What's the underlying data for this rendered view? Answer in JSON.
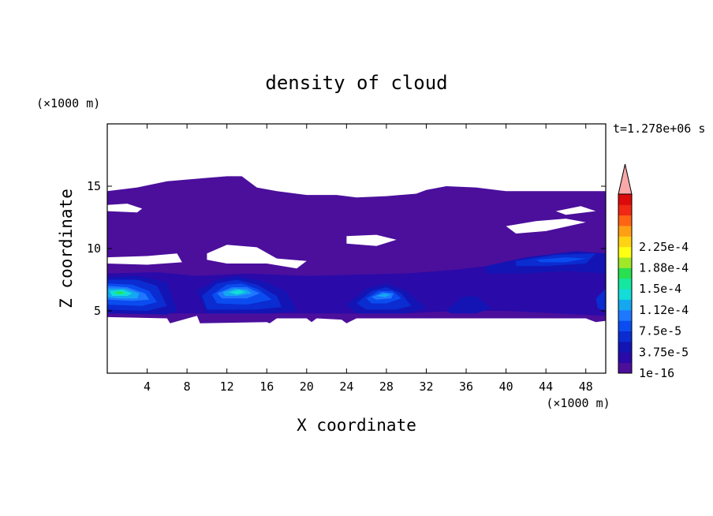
{
  "chart_data": {
    "type": "heatmap",
    "title": "density of cloud",
    "time_label": "t=1.278e+06 s",
    "xlabel": "X coordinate",
    "ylabel": "Z coordinate",
    "x_unit": "(×1000 m)",
    "y_unit": "(×1000 m)",
    "xlim": [
      0,
      50
    ],
    "ylim": [
      0,
      20
    ],
    "x_ticks": [
      {
        "value": 4,
        "label": "4"
      },
      {
        "value": 8,
        "label": "8"
      },
      {
        "value": 12,
        "label": "12"
      },
      {
        "value": 16,
        "label": "16"
      },
      {
        "value": 20,
        "label": "20"
      },
      {
        "value": 24,
        "label": "24"
      },
      {
        "value": 28,
        "label": "28"
      },
      {
        "value": 32,
        "label": "32"
      },
      {
        "value": 36,
        "label": "36"
      },
      {
        "value": 40,
        "label": "40"
      },
      {
        "value": 44,
        "label": "44"
      },
      {
        "value": 48,
        "label": "48"
      }
    ],
    "y_ticks": [
      {
        "value": 5,
        "label": "5"
      },
      {
        "value": 10,
        "label": "10"
      },
      {
        "value": 15,
        "label": "15"
      }
    ],
    "colorbar": {
      "levels": [
        "#4b0f9c",
        "#2a0aa8",
        "#1414b4",
        "#0a2cd0",
        "#0a4cf0",
        "#1e78ff",
        "#14a8f0",
        "#14dcd8",
        "#14e8a0",
        "#28e050",
        "#a0e828",
        "#ffff14",
        "#ffd214",
        "#ffa014",
        "#ff6414",
        "#f02814",
        "#dc0a0a"
      ],
      "extend_color": "#f8a8a8",
      "tick_labels": [
        {
          "level": 0,
          "label": "1e-16"
        },
        {
          "level": 2,
          "label": "3.75e-5"
        },
        {
          "level": 4,
          "label": "7.5e-5"
        },
        {
          "level": 6,
          "label": "1.12e-4"
        },
        {
          "level": 8,
          "label": "1.5e-4"
        },
        {
          "level": 10,
          "label": "1.88e-4"
        },
        {
          "level": 12,
          "label": "2.25e-4"
        }
      ]
    },
    "cloud_layer": {
      "color": "#4b0f9c",
      "top": [
        [
          0,
          14.6
        ],
        [
          3,
          14.9
        ],
        [
          6,
          15.4
        ],
        [
          9,
          15.6
        ],
        [
          12,
          15.8
        ],
        [
          13.5,
          15.8
        ],
        [
          15,
          14.9
        ],
        [
          17,
          14.6
        ],
        [
          20,
          14.3
        ],
        [
          23,
          14.3
        ],
        [
          25,
          14.1
        ],
        [
          28,
          14.2
        ],
        [
          31,
          14.4
        ],
        [
          32,
          14.7
        ],
        [
          34,
          15.0
        ],
        [
          37,
          14.9
        ],
        [
          40,
          14.6
        ],
        [
          45,
          14.6
        ],
        [
          50,
          14.6
        ]
      ],
      "bottom": [
        [
          0,
          4.5
        ],
        [
          6,
          4.4
        ],
        [
          6.3,
          4.0
        ],
        [
          9,
          4.6
        ],
        [
          9.3,
          4.0
        ],
        [
          16,
          4.1
        ],
        [
          16.3,
          4.0
        ],
        [
          17,
          4.4
        ],
        [
          20,
          4.4
        ],
        [
          20.5,
          4.1
        ],
        [
          21,
          4.4
        ],
        [
          23.5,
          4.3
        ],
        [
          24,
          4.0
        ],
        [
          25,
          4.4
        ],
        [
          32,
          4.4
        ],
        [
          40,
          4.4
        ],
        [
          48,
          4.4
        ],
        [
          49,
          4.1
        ],
        [
          50,
          4.2
        ]
      ]
    },
    "gaps": [
      [
        [
          0,
          13.5
        ],
        [
          2,
          13.6
        ],
        [
          3.5,
          13.2
        ],
        [
          3,
          12.9
        ],
        [
          0,
          13.0
        ]
      ],
      [
        [
          0,
          9.3
        ],
        [
          4,
          9.4
        ],
        [
          7,
          9.6
        ],
        [
          7.5,
          8.9
        ],
        [
          4,
          8.7
        ],
        [
          0,
          8.8
        ]
      ],
      [
        [
          10,
          9.6
        ],
        [
          12,
          10.3
        ],
        [
          15,
          10.1
        ],
        [
          17,
          9.2
        ],
        [
          20,
          9.0
        ],
        [
          19,
          8.4
        ],
        [
          16,
          8.8
        ],
        [
          12,
          8.8
        ],
        [
          10,
          9.1
        ]
      ],
      [
        [
          24,
          11.0
        ],
        [
          27,
          11.1
        ],
        [
          29,
          10.7
        ],
        [
          27,
          10.2
        ],
        [
          24,
          10.4
        ]
      ],
      [
        [
          18,
          7.0
        ],
        [
          20,
          7.7
        ],
        [
          23,
          7.6
        ],
        [
          22,
          6.9
        ],
        [
          20,
          6.6
        ]
      ],
      [
        [
          24,
          7.1
        ],
        [
          27,
          7.0
        ],
        [
          29,
          7.3
        ],
        [
          27,
          6.8
        ],
        [
          25,
          6.8
        ]
      ],
      [
        [
          31,
          7.1
        ],
        [
          33,
          7.3
        ],
        [
          35,
          7.2
        ],
        [
          34,
          6.9
        ],
        [
          31,
          6.9
        ]
      ],
      [
        [
          40,
          11.8
        ],
        [
          43,
          12.2
        ],
        [
          46,
          12.4
        ],
        [
          48,
          12.1
        ],
        [
          44,
          11.4
        ],
        [
          41,
          11.2
        ]
      ],
      [
        [
          45,
          13.0
        ],
        [
          47.5,
          13.4
        ],
        [
          49,
          13.0
        ],
        [
          46,
          12.7
        ]
      ],
      [
        [
          38,
          6.5
        ],
        [
          40,
          6.8
        ],
        [
          42,
          6.4
        ],
        [
          40,
          6.1
        ]
      ],
      [
        [
          46,
          5.9
        ],
        [
          48,
          6.2
        ],
        [
          49,
          5.8
        ],
        [
          47.5,
          5.5
        ]
      ]
    ],
    "contours": [
      {
        "level": 1,
        "points": [
          [
            0,
            8.0
          ],
          [
            5,
            8.1
          ],
          [
            9,
            7.8
          ],
          [
            14,
            8.0
          ],
          [
            20,
            7.8
          ],
          [
            25,
            7.9
          ],
          [
            30,
            8.0
          ],
          [
            35,
            8.3
          ],
          [
            40,
            8.8
          ],
          [
            45,
            9.2
          ],
          [
            50,
            9.6
          ],
          [
            50,
            4.6
          ],
          [
            45,
            4.8
          ],
          [
            40,
            5.0
          ],
          [
            35,
            5.0
          ],
          [
            30,
            4.8
          ],
          [
            25,
            4.8
          ],
          [
            20,
            4.8
          ],
          [
            15,
            4.8
          ],
          [
            10,
            4.8
          ],
          [
            5,
            4.8
          ],
          [
            0,
            4.8
          ]
        ]
      },
      {
        "level": 2,
        "points": [
          [
            0,
            7.7
          ],
          [
            3,
            7.8
          ],
          [
            6,
            7.3
          ],
          [
            7,
            5.0
          ],
          [
            6,
            4.7
          ],
          [
            0,
            4.8
          ]
        ]
      },
      {
        "level": 2,
        "points": [
          [
            9,
            6.6
          ],
          [
            11,
            7.5
          ],
          [
            13,
            7.8
          ],
          [
            16,
            7.3
          ],
          [
            18,
            6.5
          ],
          [
            19,
            5.0
          ],
          [
            16,
            4.8
          ],
          [
            10,
            4.8
          ]
        ]
      },
      {
        "level": 2,
        "points": [
          [
            24,
            5.5
          ],
          [
            26,
            6.8
          ],
          [
            28,
            7.2
          ],
          [
            30,
            6.6
          ],
          [
            32,
            5.2
          ],
          [
            30,
            4.8
          ],
          [
            25,
            4.8
          ]
        ]
      },
      {
        "level": 2,
        "points": [
          [
            34,
            5.0
          ],
          [
            35.5,
            6.1
          ],
          [
            37,
            6.2
          ],
          [
            38.5,
            5.2
          ],
          [
            37,
            4.8
          ],
          [
            34.5,
            4.8
          ]
        ]
      },
      {
        "level": 2,
        "points": [
          [
            38,
            8.6
          ],
          [
            42,
            9.3
          ],
          [
            47,
            9.8
          ],
          [
            50,
            9.6
          ],
          [
            50,
            8.0
          ],
          [
            46,
            8.2
          ],
          [
            42,
            8.0
          ],
          [
            38,
            8.0
          ]
        ]
      },
      {
        "level": 3,
        "points": [
          [
            0,
            7.5
          ],
          [
            3,
            7.5
          ],
          [
            5,
            7.0
          ],
          [
            6,
            5.4
          ],
          [
            4,
            5.0
          ],
          [
            0,
            5.1
          ]
        ]
      },
      {
        "level": 3,
        "points": [
          [
            9.5,
            6.2
          ],
          [
            11,
            7.2
          ],
          [
            13,
            7.5
          ],
          [
            15,
            7.1
          ],
          [
            17,
            6.2
          ],
          [
            17.5,
            5.3
          ],
          [
            15,
            5.1
          ],
          [
            10,
            5.1
          ]
        ]
      },
      {
        "level": 3,
        "points": [
          [
            25,
            5.6
          ],
          [
            26.5,
            6.6
          ],
          [
            28,
            6.9
          ],
          [
            29.5,
            6.4
          ],
          [
            30.5,
            5.4
          ],
          [
            29,
            5.1
          ],
          [
            26,
            5.1
          ]
        ]
      },
      {
        "level": 3,
        "points": [
          [
            41,
            9.0
          ],
          [
            45,
            9.5
          ],
          [
            49,
            9.6
          ],
          [
            48,
            8.8
          ],
          [
            44,
            8.6
          ],
          [
            41,
            8.6
          ]
        ]
      },
      {
        "level": 3,
        "points": [
          [
            49,
            6.0
          ],
          [
            50,
            6.8
          ],
          [
            50,
            5.0
          ],
          [
            49.2,
            5.2
          ]
        ]
      },
      {
        "level": 4,
        "points": [
          [
            0,
            7.2
          ],
          [
            2.5,
            7.1
          ],
          [
            4.2,
            6.6
          ],
          [
            5,
            5.7
          ],
          [
            3.5,
            5.4
          ],
          [
            0,
            5.5
          ]
        ]
      },
      {
        "level": 4,
        "points": [
          [
            10.5,
            6.3
          ],
          [
            12,
            7.1
          ],
          [
            13.5,
            7.2
          ],
          [
            15.2,
            6.7
          ],
          [
            16.5,
            5.9
          ],
          [
            14,
            5.5
          ],
          [
            11,
            5.6
          ]
        ]
      },
      {
        "level": 4,
        "points": [
          [
            26,
            6.0
          ],
          [
            27.2,
            6.6
          ],
          [
            28.6,
            6.6
          ],
          [
            29.5,
            6.0
          ],
          [
            28,
            5.6
          ],
          [
            26.5,
            5.6
          ]
        ]
      },
      {
        "level": 4,
        "points": [
          [
            43,
            9.1
          ],
          [
            46,
            9.3
          ],
          [
            48,
            9.2
          ],
          [
            46,
            8.9
          ],
          [
            43.5,
            8.9
          ]
        ]
      },
      {
        "level": 5,
        "points": [
          [
            0,
            7.0
          ],
          [
            2,
            6.9
          ],
          [
            3.8,
            6.4
          ],
          [
            4.2,
            5.9
          ],
          [
            2.5,
            5.8
          ],
          [
            0,
            5.9
          ]
        ]
      },
      {
        "level": 5,
        "points": [
          [
            11,
            6.4
          ],
          [
            12.5,
            6.9
          ],
          [
            14,
            6.9
          ],
          [
            15.3,
            6.4
          ],
          [
            14,
            6.0
          ],
          [
            11.5,
            6.0
          ]
        ]
      },
      {
        "level": 5,
        "points": [
          [
            26.5,
            6.1
          ],
          [
            27.6,
            6.5
          ],
          [
            28.7,
            6.4
          ],
          [
            28.5,
            6.0
          ],
          [
            27,
            5.9
          ]
        ]
      },
      {
        "level": 6,
        "points": [
          [
            0,
            6.8
          ],
          [
            1.8,
            6.8
          ],
          [
            3.2,
            6.4
          ],
          [
            3.0,
            6.0
          ],
          [
            1.2,
            6.0
          ],
          [
            0,
            6.1
          ]
        ]
      },
      {
        "level": 6,
        "points": [
          [
            11.6,
            6.5
          ],
          [
            12.8,
            6.8
          ],
          [
            14,
            6.7
          ],
          [
            14.5,
            6.4
          ],
          [
            13,
            6.2
          ],
          [
            11.8,
            6.2
          ]
        ]
      },
      {
        "level": 6,
        "points": [
          [
            27,
            6.2
          ],
          [
            27.8,
            6.4
          ],
          [
            28.4,
            6.3
          ],
          [
            27.9,
            6.1
          ]
        ]
      },
      {
        "level": 7,
        "points": [
          [
            0.2,
            6.6
          ],
          [
            1.5,
            6.7
          ],
          [
            2.5,
            6.4
          ],
          [
            2,
            6.2
          ],
          [
            0.5,
            6.2
          ]
        ]
      },
      {
        "level": 7,
        "points": [
          [
            12.2,
            6.5
          ],
          [
            13.2,
            6.7
          ],
          [
            13.9,
            6.5
          ],
          [
            13,
            6.3
          ]
        ]
      },
      {
        "level": 8,
        "points": [
          [
            0.5,
            6.5
          ],
          [
            1.4,
            6.6
          ],
          [
            2.0,
            6.4
          ],
          [
            1.2,
            6.3
          ]
        ]
      },
      {
        "level": 9,
        "points": [
          [
            0.8,
            6.5
          ],
          [
            1.4,
            6.55
          ],
          [
            1.6,
            6.4
          ],
          [
            1.0,
            6.38
          ]
        ]
      }
    ]
  }
}
